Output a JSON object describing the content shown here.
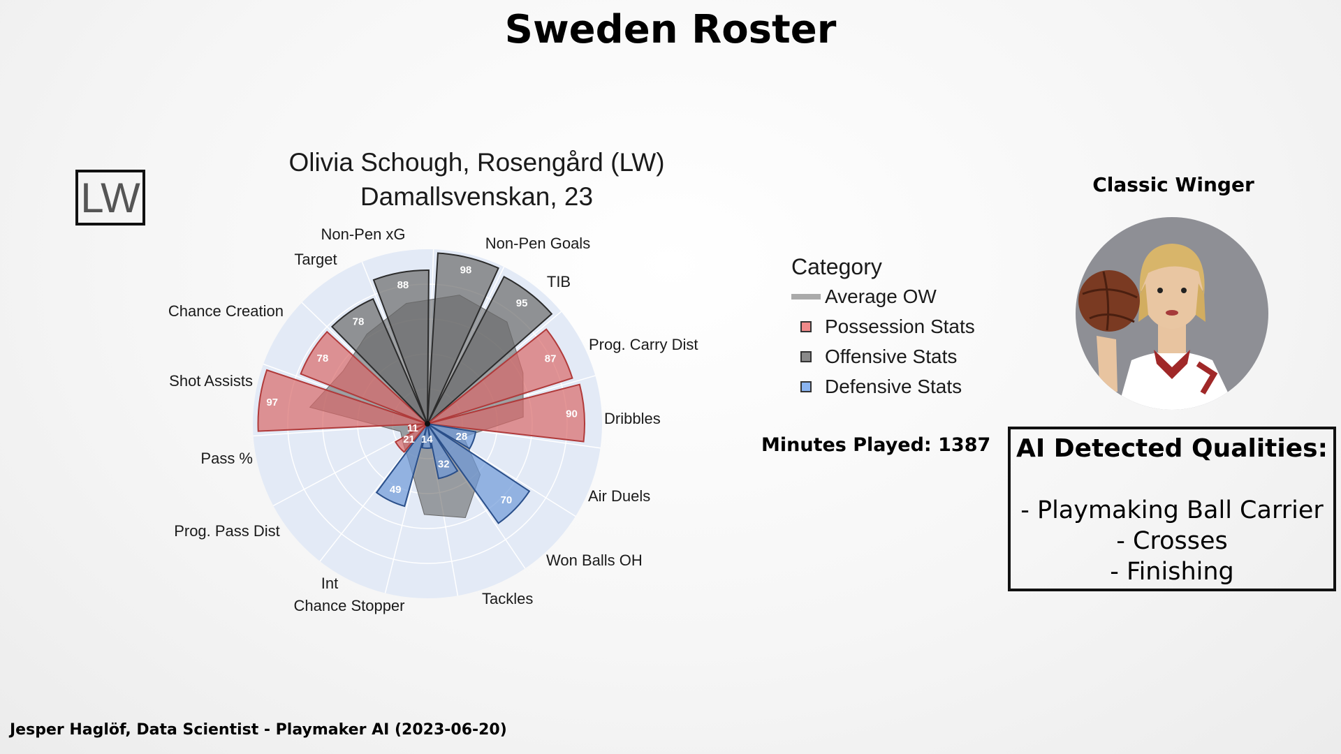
{
  "page": {
    "title": "Sweden Roster",
    "position_badge": "LW",
    "footer": "Jesper Haglöf, Data Scientist - Playmaker AI (2023-06-20)"
  },
  "player": {
    "line1": "Olivia Schough, Rosengård (LW)",
    "line2": "Damallsvenskan, 23",
    "minutes_played": "Minutes Played: 1387",
    "archetype": "Classic Winger",
    "qualities_title": "AI Detected Qualities:",
    "qualities": [
      "- Playmaking Ball Carrier",
      "- Crosses",
      "- Finishing"
    ]
  },
  "legend": {
    "title": "Category",
    "items": [
      {
        "label": "Average OW",
        "key": "average",
        "color": "#aaaaaa"
      },
      {
        "label": "Possession Stats",
        "key": "possession",
        "color": "#f08a8a"
      },
      {
        "label": "Offensive Stats",
        "key": "offensive",
        "color": "#8a8a8a"
      },
      {
        "label": "Defensive Stats",
        "key": "defensive",
        "color": "#8ab4f0"
      }
    ]
  },
  "colors": {
    "possession_fill": "#d96a6a",
    "possession_edge": "#b03a3a",
    "offensive_fill": "#6b6b6b",
    "offensive_edge": "#2b2b2b",
    "defensive_fill": "#6f9ad8",
    "defensive_edge": "#2a4f8a",
    "average_fill": "#5a5a5a",
    "background_disc": "#e3eaf6"
  },
  "chart_data": {
    "type": "polar_bar",
    "title": "Olivia Schough, Rosengård (LW)",
    "subtitle": "Damallsvenskan, 23",
    "rlim": [
      0,
      100
    ],
    "grid": true,
    "legend_position": "right",
    "categories": [
      "Non-Pen Goals",
      "TIB",
      "Prog. Carry Dist",
      "Dribbles",
      "Air Duels",
      "Won Balls OH",
      "Tackles",
      "Chance Stopper",
      "Int",
      "Prog. Pass Dist",
      "Pass %",
      "Shot Assists",
      "Chance Creation",
      "Target",
      "Non-Pen xG"
    ],
    "category_groups": [
      "offensive",
      "offensive",
      "possession",
      "possession",
      "defensive",
      "defensive",
      "defensive",
      "defensive",
      "defensive",
      "possession",
      "possession",
      "possession",
      "possession",
      "offensive",
      "offensive"
    ],
    "series": [
      {
        "name": "Player",
        "values": [
          98,
          95,
          87,
          90,
          28,
          70,
          32,
          14,
          49,
          21,
          11,
          97,
          78,
          78,
          88
        ]
      },
      {
        "name": "Average OW",
        "values": [
          76,
          74,
          62,
          55,
          22,
          42,
          58,
          52,
          24,
          18,
          16,
          68,
          57,
          62,
          70
        ]
      }
    ]
  }
}
